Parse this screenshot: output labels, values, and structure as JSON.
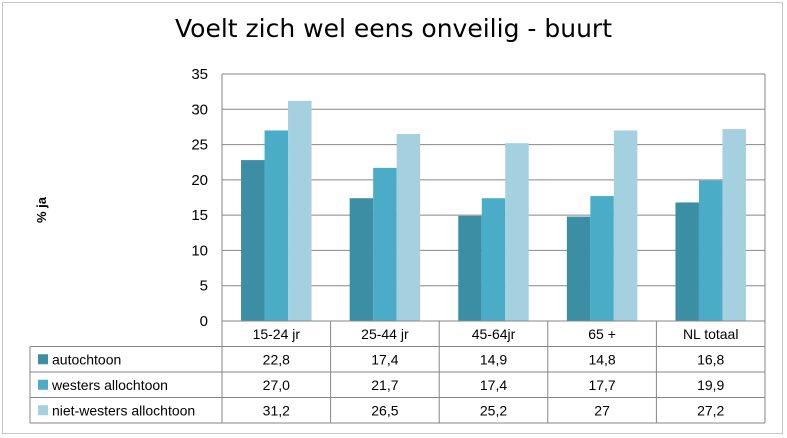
{
  "chart_data": {
    "type": "bar",
    "title": "Voelt zich wel eens onveilig - buurt",
    "ylabel": "% ja",
    "xlabel": "",
    "ylim": [
      0,
      35
    ],
    "yticks": [
      "0",
      "5",
      "10",
      "15",
      "20",
      "25",
      "30",
      "35"
    ],
    "grid": true,
    "legend": "data-table",
    "categories": [
      "15-24 jr",
      "25-44 jr",
      "45-64jr",
      "65 +",
      "NL totaal"
    ],
    "series": [
      {
        "name": "autochtoon",
        "color": "#3c8ea5",
        "values": [
          22.8,
          17.4,
          14.9,
          14.8,
          16.8
        ],
        "labels": [
          "22,8",
          "17,4",
          "14,9",
          "14,8",
          "16,8"
        ]
      },
      {
        "name": "westers allochtoon",
        "color": "#4aacc6",
        "values": [
          27.0,
          21.7,
          17.4,
          17.7,
          19.9
        ],
        "labels": [
          "27,0",
          "21,7",
          "17,4",
          "17,7",
          "19,9"
        ]
      },
      {
        "name": "niet-westers allochtoon",
        "color": "#a5d0df",
        "values": [
          31.2,
          26.5,
          25.2,
          27,
          27.2
        ],
        "labels": [
          "31,2",
          "26,5",
          "25,2",
          "27",
          "27,2"
        ]
      }
    ]
  }
}
